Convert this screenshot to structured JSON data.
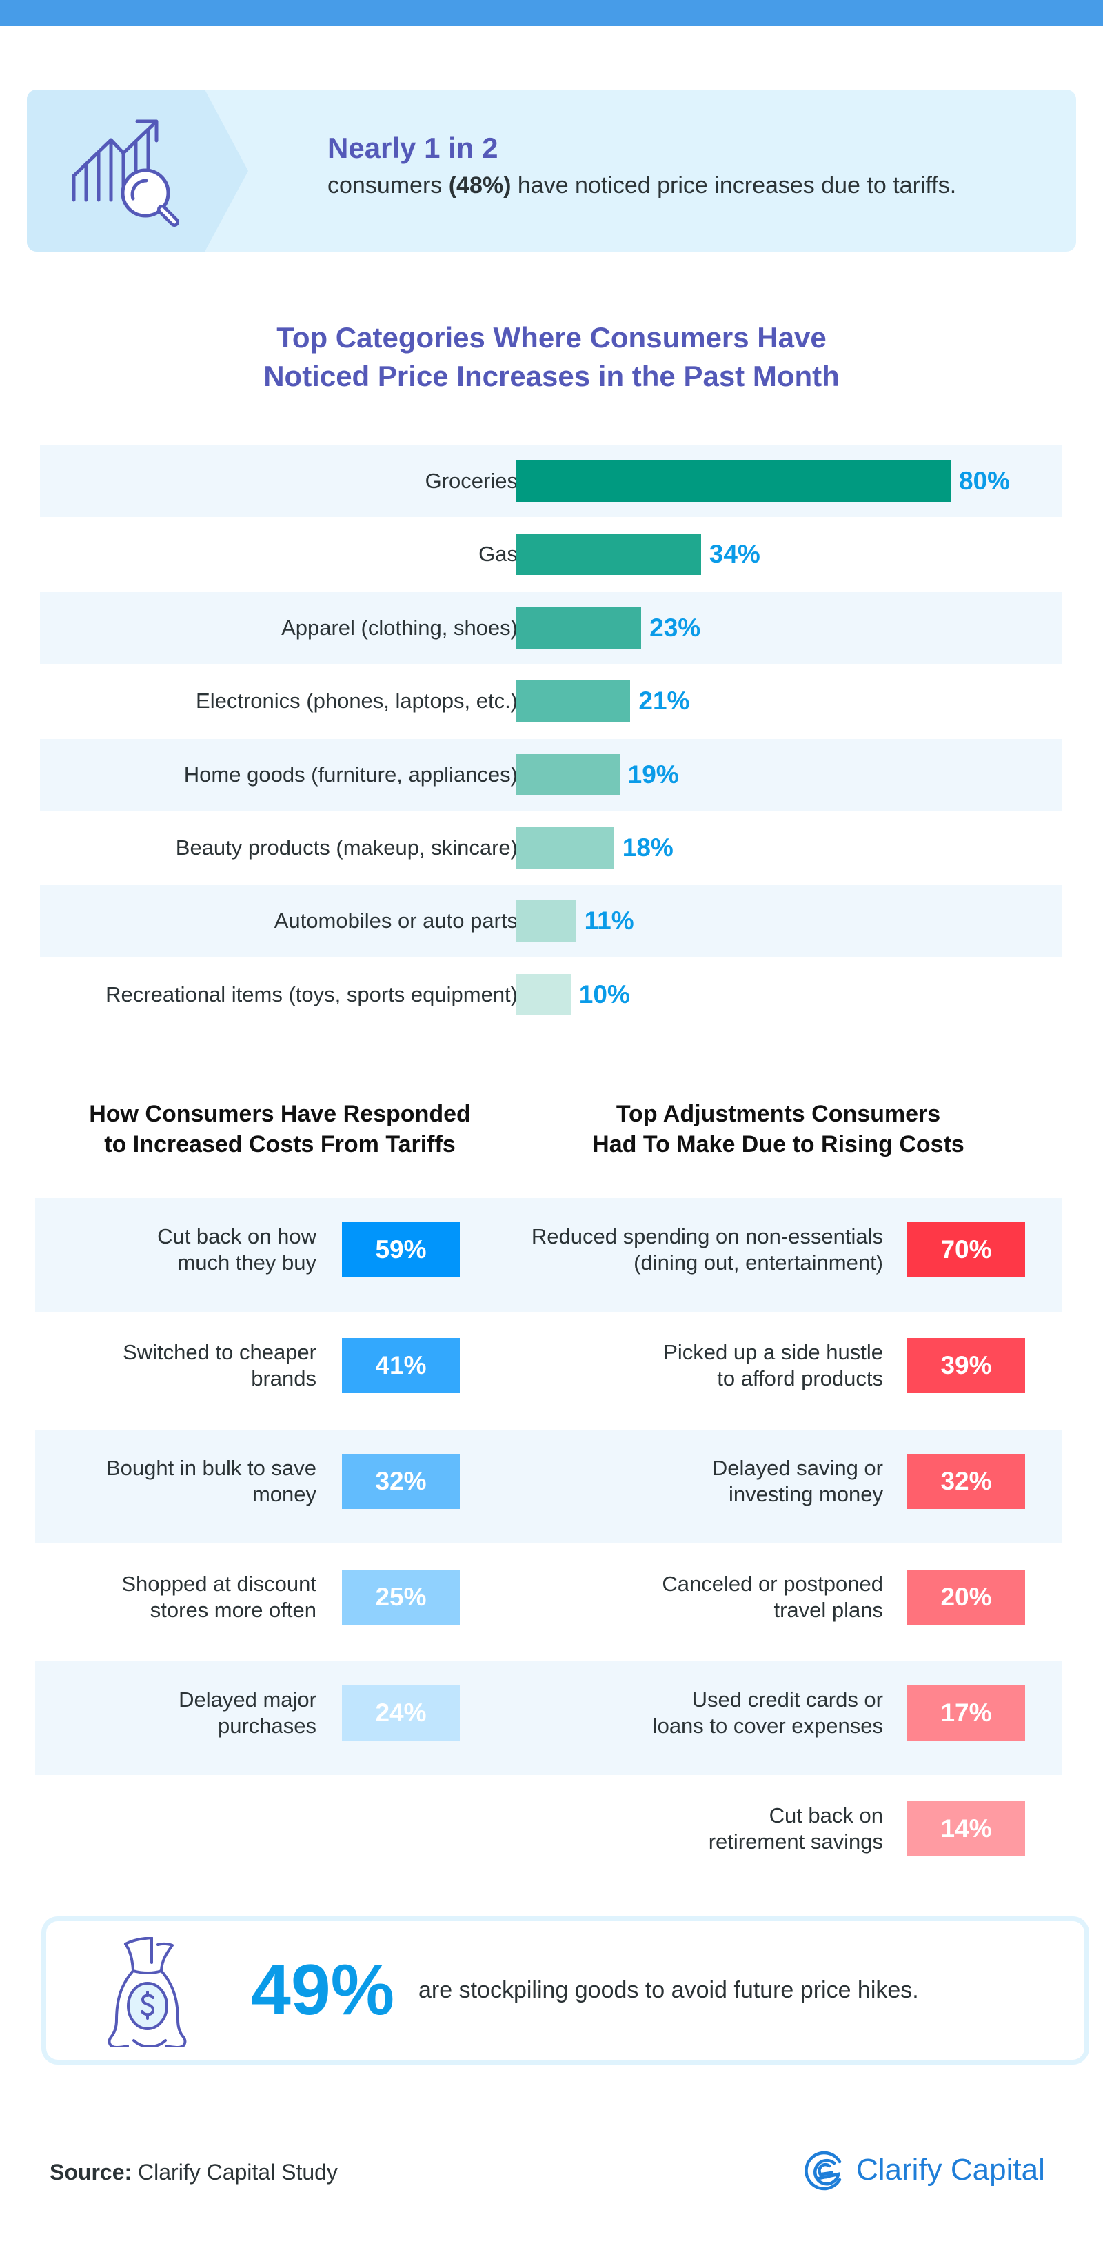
{
  "banner": {
    "headline": "Nearly 1 in 2",
    "body_prefix": "consumers ",
    "body_highlight": "(48%)",
    "body_suffix": " have noticed price increases due to tariffs.",
    "icon": "chart-magnifier-icon"
  },
  "colors": {
    "topbar": "#479ce8",
    "accent_purple": "#5459b8",
    "accent_blue_text": "#0a9be8",
    "band_bg": "#eff7fd",
    "banner_bg": "#dff3fd"
  },
  "chart_data": [
    {
      "type": "bar",
      "orientation": "horizontal",
      "title": "Top Categories Where Consumers Have Noticed Price Increases in the Past Month",
      "title_lines": [
        "Top Categories Where Consumers Have",
        "Noticed Price Increases in the Past Month"
      ],
      "categories": [
        "Groceries",
        "Gas",
        "Apparel (clothing, shoes)",
        "Electronics (phones, laptops, etc.)",
        "Home goods (furniture, appliances)",
        "Beauty products (makeup, skincare)",
        "Automobiles or auto parts",
        "Recreational items (toys, sports equipment)"
      ],
      "values": [
        80,
        34,
        23,
        21,
        19,
        18,
        11,
        10
      ],
      "value_labels": [
        "80%",
        "34%",
        "23%",
        "21%",
        "19%",
        "18%",
        "11%",
        "10%"
      ],
      "bar_colors": [
        "#009a80",
        "#1fa88f",
        "#3bb19d",
        "#56bdab",
        "#75c8b8",
        "#92d4c7",
        "#afdfd6",
        "#c9eae3"
      ],
      "unit": "%",
      "xlim": [
        0,
        100
      ],
      "grid": false,
      "legend": "none"
    },
    {
      "type": "table",
      "title": "How Consumers Have Responded to Increased Costs From Tariffs",
      "title_lines": [
        "How Consumers Have Responded",
        "to Increased Costs From Tariffs"
      ],
      "categories": [
        "Cut back on how much they buy",
        "Switched to cheaper brands",
        "Bought in bulk to save money",
        "Shopped at discount stores more often",
        "Delayed major purchases"
      ],
      "label_lines": [
        [
          "Cut back on how",
          "much they buy"
        ],
        [
          "Switched to cheaper",
          "brands"
        ],
        [
          "Bought in bulk to save",
          "money"
        ],
        [
          "Shopped at discount",
          "stores more often"
        ],
        [
          "Delayed major",
          "purchases"
        ]
      ],
      "values": [
        59,
        41,
        32,
        25,
        24
      ],
      "value_labels": [
        "59%",
        "41%",
        "32%",
        "25%",
        "24%"
      ],
      "badge_colors": [
        "#0195fb",
        "#33a8fd",
        "#62bcfd",
        "#90d1fe",
        "#c0e5fe"
      ]
    },
    {
      "type": "table",
      "title": "Top Adjustments Consumers Had To Make Due to Rising Costs",
      "title_lines": [
        "Top Adjustments Consumers",
        "Had To Make Due to Rising Costs"
      ],
      "categories": [
        "Reduced spending on non-essentials (dining out, entertainment)",
        "Picked up a side hustle to afford products",
        "Delayed saving or investing money",
        "Canceled or postponed travel plans",
        "Used credit cards or loans to cover expenses",
        "Cut back on retirement savings"
      ],
      "label_lines": [
        [
          "Reduced spending on non-essentials",
          "(dining out, entertainment)"
        ],
        [
          "Picked up a side hustle",
          "to afford products"
        ],
        [
          "Delayed saving or",
          "investing money"
        ],
        [
          "Canceled or postponed",
          "travel plans"
        ],
        [
          "Used credit cards or",
          "loans to cover expenses"
        ],
        [
          "Cut back on",
          "retirement savings"
        ]
      ],
      "values": [
        70,
        39,
        32,
        20,
        17,
        14
      ],
      "value_labels": [
        "70%",
        "39%",
        "32%",
        "20%",
        "17%",
        "14%"
      ],
      "badge_colors": [
        "#fe3847",
        "#ff4a58",
        "#ff5f6b",
        "#ff737d",
        "#ff858e",
        "#ff9ba2"
      ]
    }
  ],
  "stockpile": {
    "value": "49%",
    "text": "are stockpiling goods to avoid future price hikes.",
    "icon": "money-bag-icon"
  },
  "footer": {
    "source_label": "Source:",
    "source_text": " Clarify Capital Study",
    "logo_text": "Clarify Capital",
    "logo_icon": "clarify-capital-logo-icon"
  }
}
